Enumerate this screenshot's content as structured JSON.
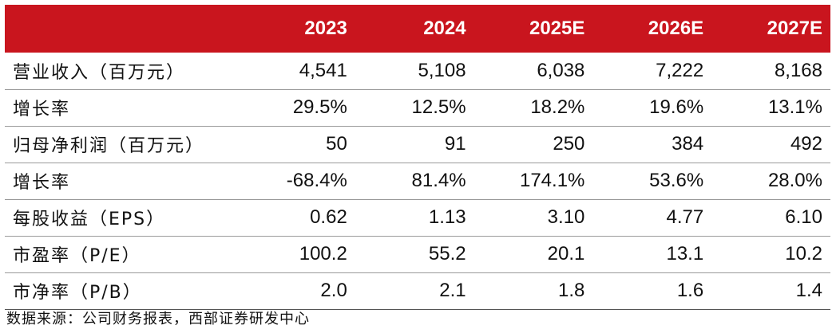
{
  "table": {
    "header_color": "#c9151e",
    "columns": [
      "",
      "2023",
      "2024",
      "2025E",
      "2026E",
      "2027E"
    ],
    "rows": [
      {
        "label": "营业收入（百万元）",
        "values": [
          "4,541",
          "5,108",
          "6,038",
          "7,222",
          "8,168"
        ]
      },
      {
        "label": "增长率",
        "values": [
          "29.5%",
          "12.5%",
          "18.2%",
          "19.6%",
          "13.1%"
        ]
      },
      {
        "label": "归母净利润（百万元）",
        "values": [
          "50",
          "91",
          "250",
          "384",
          "492"
        ]
      },
      {
        "label": "增长率",
        "values": [
          "-68.4%",
          "81.4%",
          "174.1%",
          "53.6%",
          "28.0%"
        ]
      },
      {
        "label": "每股收益（EPS）",
        "values": [
          "0.62",
          "1.13",
          "3.10",
          "4.77",
          "6.10"
        ]
      },
      {
        "label": "市盈率（P/E）",
        "values": [
          "100.2",
          "55.2",
          "20.1",
          "13.1",
          "10.2"
        ]
      },
      {
        "label": "市净率（P/B）",
        "values": [
          "2.0",
          "2.1",
          "1.8",
          "1.6",
          "1.4"
        ]
      }
    ]
  },
  "source": "数据来源：公司财务报表，西部证券研发中心"
}
